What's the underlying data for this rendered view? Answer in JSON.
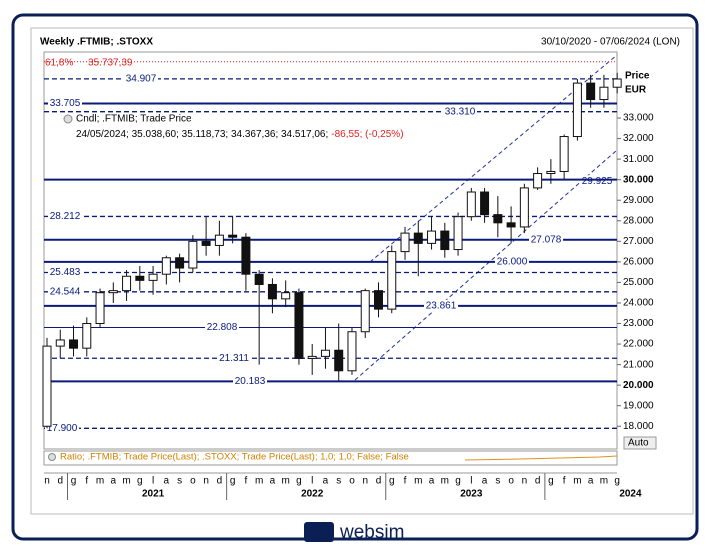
{
  "chart_data": {
    "type": "candlestick",
    "title": "Weekly .FTMIB; .STOXX",
    "date_range": "30/10/2020 - 07/06/2024 (LON)",
    "axis_label": "Price",
    "currency": "EUR",
    "legend_title": "Cndl; .FTMIB; Trade Price",
    "legend_values": "24/05/2024; 35.038,60; 35.118,73; 34.367,36; 34.517,06;",
    "legend_change": "-86,55; (-0,25%)",
    "auto_label": "Auto",
    "ratio_label": "Ratio; .FTMIB; Trade Price(Last); .STOXX; Trade Price(Last); 1,0; 1,0; False; False",
    "logo": "websim",
    "categories": [
      "n",
      "d",
      "g",
      "f",
      "m",
      "a",
      "m",
      "g",
      "l",
      "a",
      "s",
      "o",
      "n",
      "d",
      "g",
      "f",
      "m",
      "a",
      "m",
      "g",
      "l",
      "a",
      "s",
      "o",
      "n",
      "d",
      "g",
      "f",
      "m",
      "a",
      "m",
      "g",
      "l",
      "a",
      "s",
      "o",
      "n",
      "d",
      "g",
      "f",
      "m",
      "a",
      "m",
      "g"
    ],
    "year_labels": [
      "2021",
      "2022",
      "2023",
      "2024"
    ],
    "candles": {
      "open": [
        18000,
        21900,
        22200,
        21800,
        23000,
        24500,
        24600,
        25300,
        25100,
        25400,
        26200,
        25700,
        27000,
        26800,
        27300,
        27200,
        25400,
        24900,
        24200,
        24500,
        21300,
        21400,
        21700,
        20700,
        22600,
        24600,
        23700,
        26500,
        27400,
        26900,
        27500,
        26600,
        28200,
        29400,
        28300,
        27900,
        27700,
        29600,
        30300,
        30400,
        32100,
        34700,
        33900,
        34500
      ],
      "high": [
        22300,
        22700,
        22900,
        23300,
        24700,
        25000,
        25600,
        25800,
        25800,
        26300,
        26400,
        27300,
        28200,
        28000,
        28200,
        27400,
        25600,
        25200,
        25100,
        24700,
        22000,
        22800,
        23000,
        22800,
        24700,
        25000,
        26800,
        27700,
        28000,
        28200,
        27900,
        28400,
        29600,
        29600,
        29200,
        28700,
        29800,
        30600,
        31000,
        32200,
        34900,
        35100,
        35100,
        35200
      ],
      "low": [
        17900,
        21300,
        21400,
        21400,
        22800,
        24000,
        24100,
        24600,
        24400,
        24900,
        25000,
        25500,
        26300,
        26300,
        26900,
        24600,
        21000,
        23500,
        23800,
        21000,
        20500,
        20800,
        20200,
        20500,
        22300,
        23300,
        23500,
        26100,
        25300,
        26600,
        26200,
        26300,
        28000,
        27900,
        27200,
        26900,
        27400,
        29500,
        29800,
        30000,
        31900,
        33500,
        33500,
        34200
      ],
      "close": [
        21900,
        22200,
        21800,
        23000,
        24500,
        24600,
        25300,
        25100,
        25400,
        26200,
        25700,
        27000,
        26800,
        27300,
        27200,
        25400,
        24900,
        24200,
        24500,
        21300,
        21400,
        21700,
        20700,
        22600,
        24600,
        23700,
        26500,
        27400,
        26900,
        27500,
        26600,
        28200,
        29400,
        28300,
        27900,
        27700,
        29600,
        30300,
        30400,
        32100,
        34700,
        33900,
        34500,
        34900
      ]
    },
    "ylim": [
      16893,
      36214
    ],
    "yticks": [
      {
        "value": 18000,
        "label": "18.000"
      },
      {
        "value": 19000,
        "label": "19.000"
      },
      {
        "value": 20000,
        "label": "20.000"
      },
      {
        "value": 21000,
        "label": "21.000"
      },
      {
        "value": 22000,
        "label": "22.000"
      },
      {
        "value": 23000,
        "label": "23.000"
      },
      {
        "value": 24000,
        "label": "24.000"
      },
      {
        "value": 25000,
        "label": "25.000"
      },
      {
        "value": 26000,
        "label": "26.000"
      },
      {
        "value": 27000,
        "label": "27.000"
      },
      {
        "value": 28000,
        "label": "28.000"
      },
      {
        "value": 29000,
        "label": "29.000"
      },
      {
        "value": 30000,
        "label": "30.000"
      },
      {
        "value": 31000,
        "label": "31.000"
      },
      {
        "value": 32000,
        "label": "32.000"
      },
      {
        "value": 33000,
        "label": "33.000"
      }
    ],
    "bold_ticks": [
      20000,
      30000
    ],
    "fib_level": {
      "value": 35737.39,
      "pct": "61,8%",
      "label": "35.737,39",
      "color": "#e02020"
    },
    "levels": [
      {
        "value": 34907,
        "label": "34.907",
        "style": "dashed"
      },
      {
        "value": 33705,
        "label": "33.705",
        "style": "solid"
      },
      {
        "value": 33310,
        "label": "33.310",
        "style": "dashed"
      },
      {
        "value": 29925,
        "label": "29.925",
        "style": "none"
      },
      {
        "value": 30000,
        "label": "30.000",
        "style": "solid"
      },
      {
        "value": 28212,
        "label": "28.212",
        "style": "dashed"
      },
      {
        "value": 27078,
        "label": "27.078",
        "style": "solid"
      },
      {
        "value": 26000,
        "label": "26.000",
        "style": "solid"
      },
      {
        "value": 25483,
        "label": "25.483",
        "style": "dashed"
      },
      {
        "value": 24544,
        "label": "24.544",
        "style": "dashed"
      },
      {
        "value": 23861,
        "label": "23.861",
        "style": "solid"
      },
      {
        "value": 22808,
        "label": "22.808",
        "style": "thin"
      },
      {
        "value": 21311,
        "label": "21.311",
        "style": "dashed"
      },
      {
        "value": 20183,
        "label": "20.183",
        "style": "solid"
      },
      {
        "value": 17900,
        "label": "17.900",
        "style": "dashed"
      }
    ],
    "line_color": "#0a1a7a",
    "up_color": "#ffffff",
    "down_color": "#111111"
  }
}
